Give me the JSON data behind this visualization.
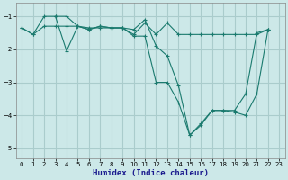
{
  "xlabel": "Humidex (Indice chaleur)",
  "bg_color": "#cce8e8",
  "grid_color": "#aacccc",
  "line_color": "#1a7a6e",
  "xlim": [
    -0.5,
    23.5
  ],
  "ylim": [
    -5.3,
    -0.6
  ],
  "yticks": [
    -5,
    -4,
    -3,
    -2,
    -1
  ],
  "xticks": [
    0,
    1,
    2,
    3,
    4,
    5,
    6,
    7,
    8,
    9,
    10,
    11,
    12,
    13,
    14,
    15,
    16,
    17,
    18,
    19,
    20,
    21,
    22,
    23
  ],
  "series1_x": [
    0,
    1,
    2,
    3,
    4,
    5,
    6,
    7,
    8,
    9,
    10,
    11,
    12,
    13,
    14,
    15,
    16,
    17,
    18,
    19,
    20,
    21,
    22
  ],
  "series1_y": [
    -1.35,
    -1.55,
    -1.3,
    -1.3,
    -1.3,
    -1.3,
    -1.35,
    -1.35,
    -1.35,
    -1.35,
    -1.55,
    -1.2,
    -1.55,
    -1.2,
    -1.55,
    -1.55,
    -1.55,
    -1.55,
    -1.55,
    -1.55,
    -1.55,
    -1.55,
    -1.4
  ],
  "series2_x": [
    0,
    1,
    2,
    3,
    4,
    5,
    6,
    7,
    8,
    9,
    10,
    11,
    12,
    13,
    14,
    15,
    16,
    17,
    18,
    19,
    20,
    21,
    22
  ],
  "series2_y": [
    -1.35,
    -1.55,
    -1.0,
    -1.0,
    -2.05,
    -1.3,
    -1.4,
    -1.3,
    -1.35,
    -1.35,
    -1.4,
    -1.1,
    -1.9,
    -2.2,
    -3.1,
    -4.6,
    -4.3,
    -3.85,
    -3.85,
    -3.85,
    -3.35,
    -1.5,
    -1.4
  ],
  "series3_x": [
    3,
    4,
    5,
    6,
    7,
    8,
    9,
    10,
    11,
    12,
    13,
    14,
    15,
    16,
    17,
    18,
    19,
    20,
    21,
    22
  ],
  "series3_y": [
    -1.0,
    -1.0,
    -1.3,
    -1.4,
    -1.3,
    -1.35,
    -1.35,
    -1.6,
    -1.6,
    -3.0,
    -3.0,
    -3.6,
    -4.6,
    -4.25,
    -3.85,
    -3.85,
    -3.9,
    -4.0,
    -3.35,
    -1.4
  ]
}
